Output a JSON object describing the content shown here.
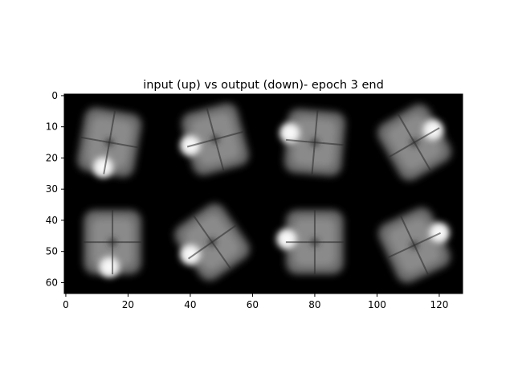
{
  "chart_data": {
    "type": "heatmap",
    "title": "input (up) vs output (down)- epoch 3 end",
    "xlabel": "",
    "ylabel": "",
    "colormap": "gray",
    "image_shape": [
      64,
      128
    ],
    "xlim": [
      -0.5,
      127.5
    ],
    "ylim": [
      63.5,
      -0.5
    ],
    "x_ticks": [
      0,
      20,
      40,
      60,
      80,
      100,
      120
    ],
    "y_ticks": [
      0,
      10,
      20,
      30,
      40,
      50,
      60
    ],
    "grid": false,
    "tiles": [
      {
        "row": 0,
        "col": 0,
        "center": [
          14,
          15
        ],
        "bright_spot": [
          12,
          23
        ],
        "rotation": 10
      },
      {
        "row": 0,
        "col": 1,
        "center": [
          48,
          14
        ],
        "bright_spot": [
          40,
          16
        ],
        "rotation": -15
      },
      {
        "row": 0,
        "col": 2,
        "center": [
          80,
          15
        ],
        "bright_spot": [
          72,
          12
        ],
        "rotation": 5
      },
      {
        "row": 0,
        "col": 3,
        "center": [
          112,
          15
        ],
        "bright_spot": [
          118,
          11
        ],
        "rotation": -30
      },
      {
        "row": 1,
        "col": 0,
        "center": [
          15,
          47
        ],
        "bright_spot": [
          14,
          55
        ],
        "rotation": 0
      },
      {
        "row": 1,
        "col": 1,
        "center": [
          47,
          47
        ],
        "bright_spot": [
          40,
          51
        ],
        "rotation": -35
      },
      {
        "row": 1,
        "col": 2,
        "center": [
          80,
          47
        ],
        "bright_spot": [
          71,
          46
        ],
        "rotation": 0
      },
      {
        "row": 1,
        "col": 3,
        "center": [
          112,
          48
        ],
        "bright_spot": [
          120,
          44
        ],
        "rotation": -25
      }
    ]
  }
}
